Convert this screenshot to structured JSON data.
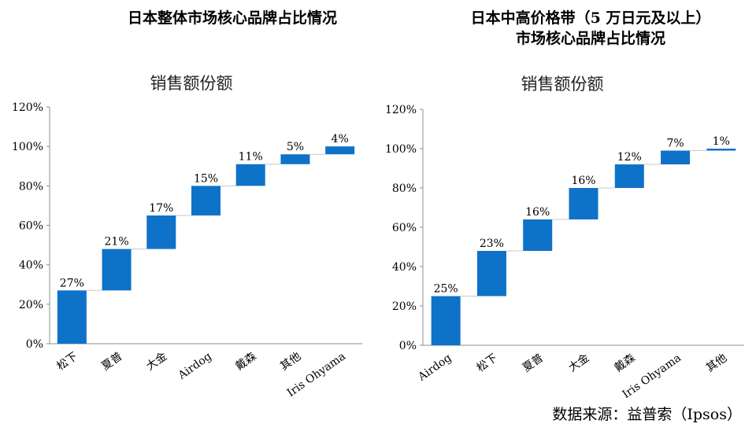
{
  "source": "数据来源：益普索（Ipsos）",
  "colors": {
    "bar": "#0E72C8",
    "axis": "#8C8C8C",
    "connector": "#C8C8C8",
    "text": "#000000"
  },
  "chart_data": [
    {
      "type": "bar",
      "subtype": "waterfall",
      "title": "日本整体市场核心品牌占比情况",
      "chart_title": "销售额份额",
      "categories": [
        "松下",
        "夏普",
        "大金",
        "Airdog",
        "戴森",
        "其他",
        "Iris Ohyama"
      ],
      "values": [
        27,
        21,
        17,
        15,
        11,
        5,
        4
      ],
      "value_labels": [
        "27%",
        "21%",
        "17%",
        "15%",
        "11%",
        "5%",
        "4%"
      ],
      "ylim": [
        0,
        120
      ],
      "yticks": [
        "0%",
        "20%",
        "40%",
        "60%",
        "80%",
        "100%",
        "120%"
      ],
      "grid": false,
      "legend": "none"
    },
    {
      "type": "bar",
      "subtype": "waterfall",
      "title": "日本中高价格带（5 万日元及以上）市场核心品牌占比情况",
      "title_line1": "日本中高价格带（5 万日元及以上）",
      "title_line2": "市场核心品牌占比情况",
      "chart_title": "销售额份额",
      "categories": [
        "Airdog",
        "松下",
        "夏普",
        "大金",
        "戴森",
        "Iris Ohyama",
        "其他"
      ],
      "values": [
        25,
        23,
        16,
        16,
        12,
        7,
        1
      ],
      "value_labels": [
        "25%",
        "23%",
        "16%",
        "16%",
        "12%",
        "7%",
        "1%"
      ],
      "ylim": [
        0,
        120
      ],
      "yticks": [
        "0%",
        "20%",
        "40%",
        "60%",
        "80%",
        "100%",
        "120%"
      ],
      "grid": false,
      "legend": "none"
    }
  ]
}
